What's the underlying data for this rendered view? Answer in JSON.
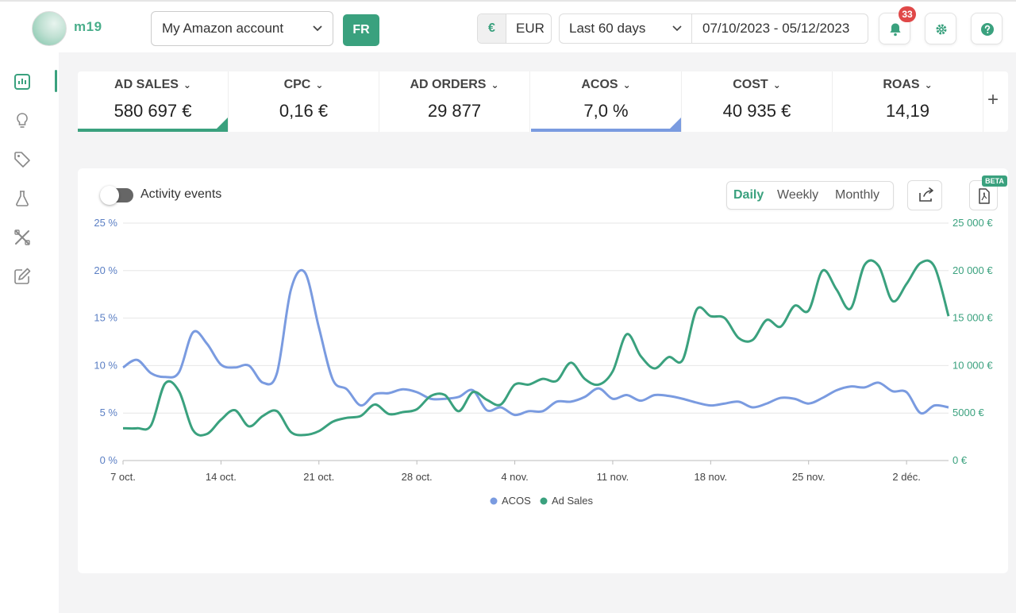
{
  "header": {
    "logo_text": "m19",
    "account": "My Amazon account",
    "marketplace": "FR",
    "currency_symbol": "€",
    "currency_code": "EUR",
    "period": "Last 60 days",
    "date_range": "07/10/2023 - 05/12/2023",
    "notifications_count": "33"
  },
  "kpis": [
    {
      "label": "AD SALES",
      "value": "580 697 €",
      "color": "#3aa17e"
    },
    {
      "label": "CPC",
      "value": "0,16 €"
    },
    {
      "label": "AD ORDERS",
      "value": "29 877"
    },
    {
      "label": "ACOS",
      "value": "7,0 %",
      "color": "#7a9be0"
    },
    {
      "label": "COST",
      "value": "40 935 €"
    },
    {
      "label": "ROAS",
      "value": "14,19"
    }
  ],
  "chart_controls": {
    "activity_events": "Activity events",
    "daily": "Daily",
    "weekly": "Weekly",
    "monthly": "Monthly",
    "beta": "BETA"
  },
  "chart_data": {
    "type": "line",
    "x_ticks": [
      "7 oct.",
      "14 oct.",
      "21 oct.",
      "28 oct.",
      "4 nov.",
      "11 nov.",
      "18 nov.",
      "25 nov.",
      "2 déc."
    ],
    "left_axis": {
      "ticks": [
        "0 %",
        "5 %",
        "10 %",
        "15 %",
        "20 %",
        "25 %"
      ],
      "ylim": [
        0,
        25
      ]
    },
    "right_axis": {
      "ticks": [
        "0 €",
        "5000 €",
        "10 000 €",
        "15 000 €",
        "20 000 €",
        "25 000 €"
      ],
      "ylim": [
        0,
        25000
      ]
    },
    "grid": true,
    "legend": "bottom",
    "series": [
      {
        "name": "ACOS",
        "axis": "left",
        "color": "#7a9be0",
        "x": [
          "2023-10-07",
          "2023-10-08",
          "2023-10-09",
          "2023-10-10",
          "2023-10-11",
          "2023-10-12",
          "2023-10-13",
          "2023-10-14",
          "2023-10-15",
          "2023-10-16",
          "2023-10-17",
          "2023-10-18",
          "2023-10-19",
          "2023-10-20",
          "2023-10-21",
          "2023-10-22",
          "2023-10-23",
          "2023-10-24",
          "2023-10-25",
          "2023-10-26",
          "2023-10-27",
          "2023-10-28",
          "2023-10-29",
          "2023-10-30",
          "2023-10-31",
          "2023-11-01",
          "2023-11-02",
          "2023-11-03",
          "2023-11-04",
          "2023-11-05",
          "2023-11-06",
          "2023-11-07",
          "2023-11-08",
          "2023-11-09",
          "2023-11-10",
          "2023-11-11",
          "2023-11-12",
          "2023-11-13",
          "2023-11-14",
          "2023-11-15",
          "2023-11-16",
          "2023-11-17",
          "2023-11-18",
          "2023-11-19",
          "2023-11-20",
          "2023-11-21",
          "2023-11-22",
          "2023-11-23",
          "2023-11-24",
          "2023-11-25",
          "2023-11-26",
          "2023-11-27",
          "2023-11-28",
          "2023-11-29",
          "2023-11-30",
          "2023-12-01",
          "2023-12-02",
          "2023-12-03",
          "2023-12-04",
          "2023-12-05"
        ],
        "values": [
          9.8,
          10.6,
          9.2,
          8.8,
          9.3,
          13.5,
          12.3,
          10.1,
          9.8,
          10.0,
          8.2,
          9.2,
          18.0,
          19.8,
          14.0,
          8.5,
          7.5,
          5.8,
          7.0,
          7.1,
          7.5,
          7.2,
          6.5,
          6.5,
          6.7,
          7.4,
          5.3,
          5.6,
          4.8,
          5.2,
          5.2,
          6.2,
          6.2,
          6.7,
          7.6,
          6.5,
          6.9,
          6.3,
          6.9,
          6.8,
          6.5,
          6.1,
          5.8,
          6.0,
          6.2,
          5.6,
          6.0,
          6.6,
          6.5,
          6.0,
          6.6,
          7.4,
          7.8,
          7.7,
          8.2,
          7.3,
          7.2,
          5.0,
          5.8,
          5.6
        ]
      },
      {
        "name": "Ad Sales",
        "axis": "right",
        "color": "#3aa17e",
        "x": [
          "2023-10-07",
          "2023-10-08",
          "2023-10-09",
          "2023-10-10",
          "2023-10-11",
          "2023-10-12",
          "2023-10-13",
          "2023-10-14",
          "2023-10-15",
          "2023-10-16",
          "2023-10-17",
          "2023-10-18",
          "2023-10-19",
          "2023-10-20",
          "2023-10-21",
          "2023-10-22",
          "2023-10-23",
          "2023-10-24",
          "2023-10-25",
          "2023-10-26",
          "2023-10-27",
          "2023-10-28",
          "2023-10-29",
          "2023-10-30",
          "2023-10-31",
          "2023-11-01",
          "2023-11-02",
          "2023-11-03",
          "2023-11-04",
          "2023-11-05",
          "2023-11-06",
          "2023-11-07",
          "2023-11-08",
          "2023-11-09",
          "2023-11-10",
          "2023-11-11",
          "2023-11-12",
          "2023-11-13",
          "2023-11-14",
          "2023-11-15",
          "2023-11-16",
          "2023-11-17",
          "2023-11-18",
          "2023-11-19",
          "2023-11-20",
          "2023-11-21",
          "2023-11-22",
          "2023-11-23",
          "2023-11-24",
          "2023-11-25",
          "2023-11-26",
          "2023-11-27",
          "2023-11-28",
          "2023-11-29",
          "2023-11-30",
          "2023-12-01",
          "2023-12-02",
          "2023-12-03",
          "2023-12-04",
          "2023-12-05"
        ],
        "values": [
          3400,
          3400,
          3700,
          8100,
          7300,
          3200,
          2800,
          4300,
          5300,
          3600,
          4700,
          5200,
          3000,
          2700,
          3100,
          4100,
          4500,
          4700,
          5900,
          4900,
          5100,
          5400,
          6800,
          6900,
          5200,
          7200,
          6400,
          5900,
          8000,
          8000,
          8600,
          8400,
          10300,
          8600,
          8000,
          9400,
          13300,
          11000,
          9700,
          10900,
          10600,
          15900,
          15200,
          15000,
          12900,
          12700,
          14800,
          14100,
          16300,
          15800,
          20000,
          18000,
          16000,
          20600,
          20500,
          16800,
          18600,
          20800,
          20400,
          15200
        ]
      }
    ]
  }
}
